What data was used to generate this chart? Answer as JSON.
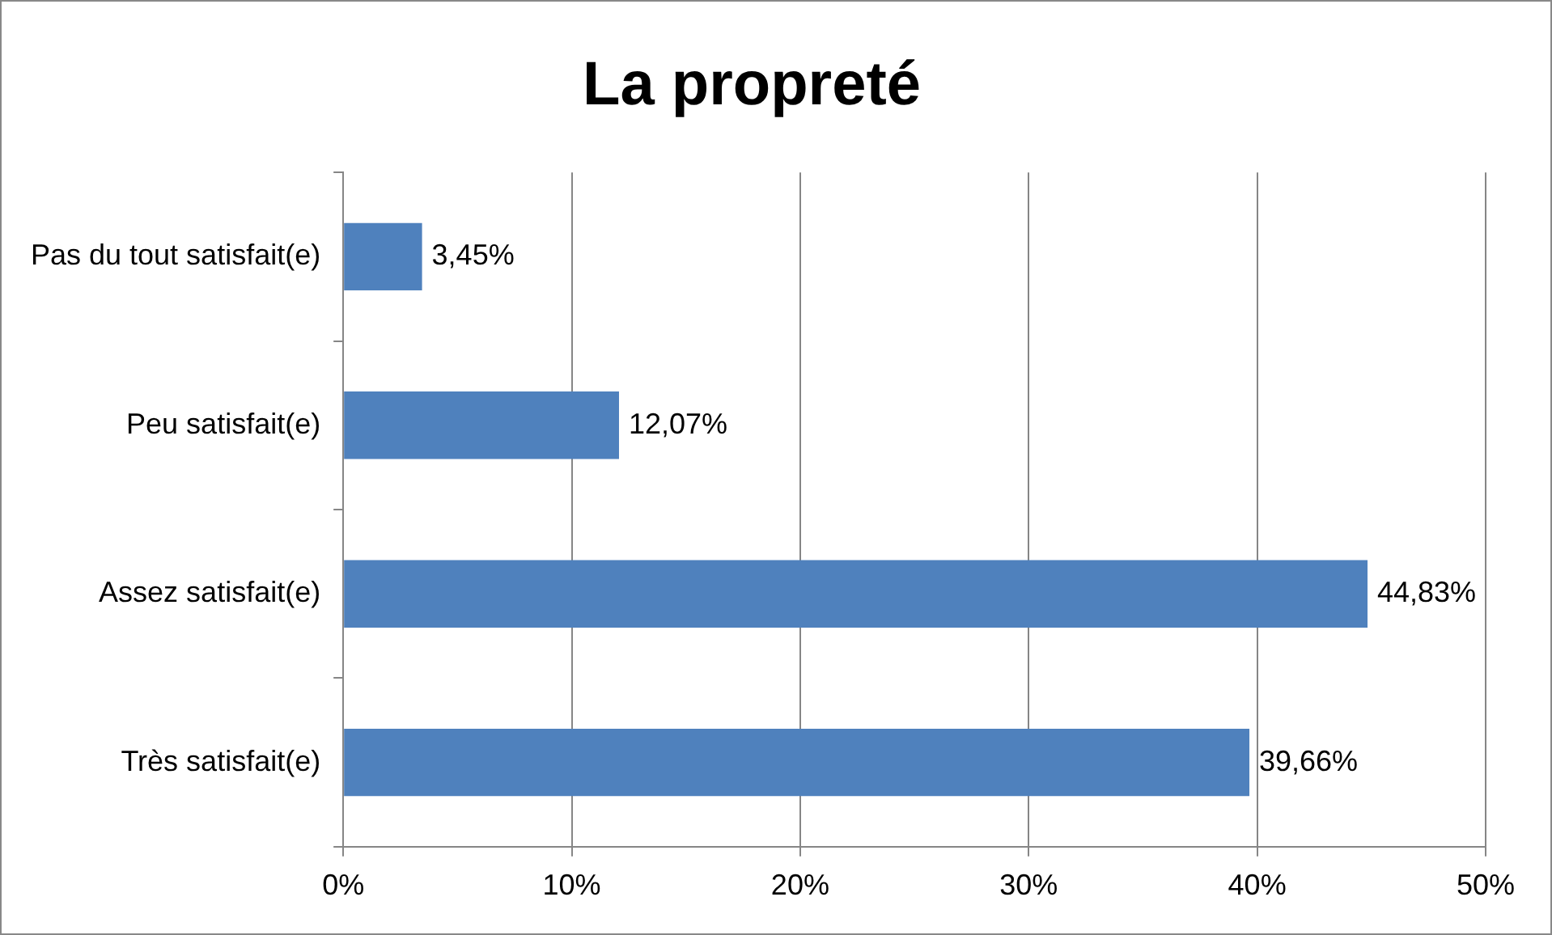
{
  "chart_data": {
    "type": "bar",
    "orientation": "horizontal",
    "title": "La propreté",
    "categories": [
      "Pas du tout satisfait(e)",
      "Peu satisfait(e)",
      "Assez satisfait(e)",
      "Très satisfait(e)"
    ],
    "values": [
      3.45,
      12.07,
      44.83,
      39.66
    ],
    "value_labels": [
      "3,45%",
      "12,07%",
      "44,83%",
      "39,66%"
    ],
    "color": "#4f81bd",
    "xlim": [
      0,
      50
    ],
    "xticks": [
      {
        "value": 0,
        "label": "0%"
      },
      {
        "value": 10,
        "label": "10%"
      },
      {
        "value": 20,
        "label": "20%"
      },
      {
        "value": 30,
        "label": "30%"
      },
      {
        "value": 40,
        "label": "40%"
      },
      {
        "value": 50,
        "label": "50%"
      }
    ],
    "grid": "x",
    "legend": false
  }
}
